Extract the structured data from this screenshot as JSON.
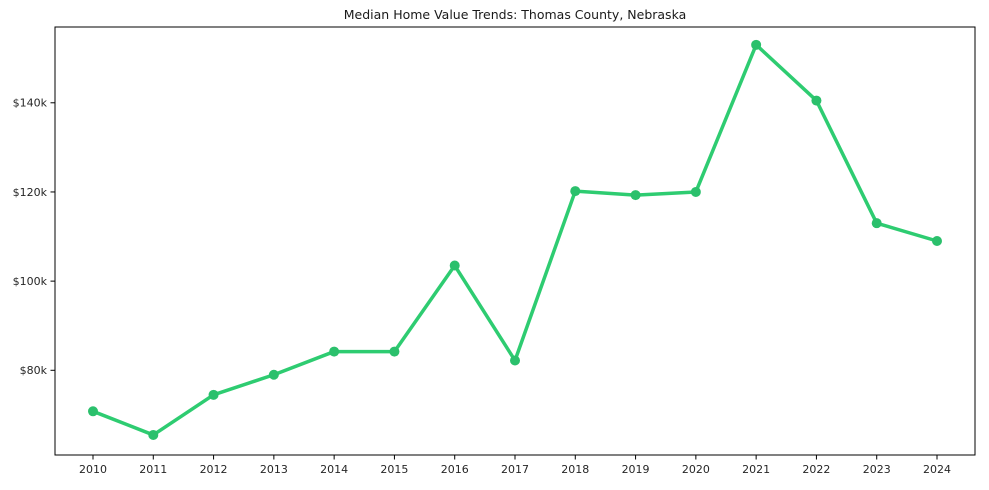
{
  "chart_data": {
    "type": "line",
    "title": "Median Home Value Trends: Thomas County, Nebraska",
    "xlabel": "",
    "ylabel": "",
    "categories": [
      2010,
      2011,
      2012,
      2013,
      2014,
      2015,
      2016,
      2017,
      2018,
      2019,
      2020,
      2021,
      2022,
      2023,
      2024
    ],
    "series": [
      {
        "name": "Median Home Value",
        "values": [
          70800,
          65500,
          74500,
          79000,
          84200,
          84200,
          103500,
          82200,
          120200,
          119300,
          120000,
          153000,
          140500,
          113000,
          109000
        ]
      }
    ],
    "ylim": [
      61000,
      157000
    ],
    "yticks": [
      80000,
      100000,
      120000,
      140000
    ],
    "ytick_labels": [
      "$80k",
      "$100k",
      "$120k",
      "$140k"
    ],
    "grid": "off",
    "legend": "none",
    "line_color": "#2ecc71",
    "marker_color": "#2bc06c",
    "axis_color": "#000000",
    "background_color": "#ffffff"
  }
}
